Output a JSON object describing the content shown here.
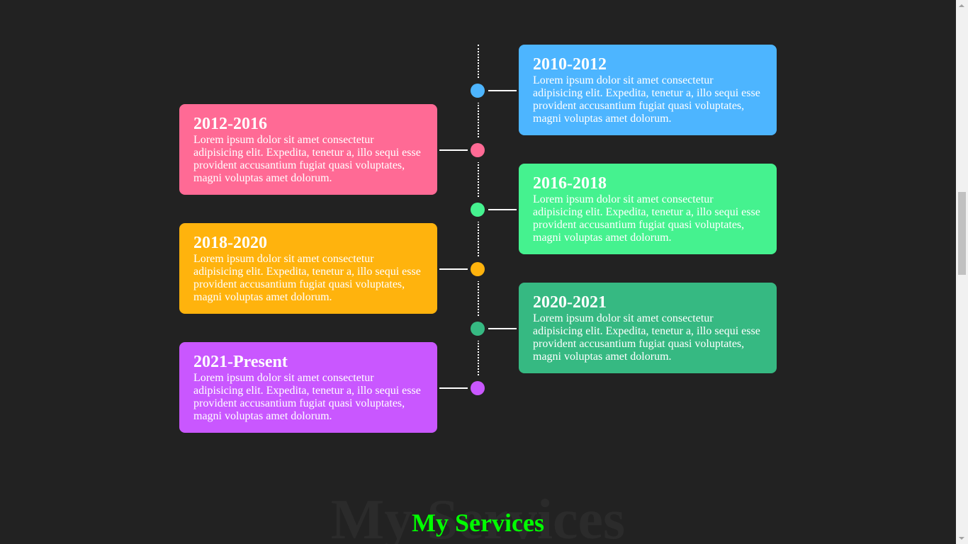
{
  "timeline": {
    "items": [
      {
        "year": "2010-2012",
        "desc": "Lorem ipsum dolor sit amet consectetur adipisicing elit. Expedita, tenetur a, illo sequi esse provident accusantium fugiat quasi voluptates, magni voluptas amet dolorum.",
        "color": "#4db5ff",
        "side": "right"
      },
      {
        "year": "2012-2016",
        "desc": "Lorem ipsum dolor sit amet consectetur adipisicing elit. Expedita, tenetur a, illo sequi esse provident accusantium fugiat quasi voluptates, magni voluptas amet dolorum.",
        "color": "#ff6a95",
        "side": "left"
      },
      {
        "year": "2016-2018",
        "desc": "Lorem ipsum dolor sit amet consectetur adipisicing elit. Expedita, tenetur a, illo sequi esse provident accusantium fugiat quasi voluptates, magni voluptas amet dolorum.",
        "color": "#45f28f",
        "side": "right"
      },
      {
        "year": "2018-2020",
        "desc": "Lorem ipsum dolor sit amet consectetur adipisicing elit. Expedita, tenetur a, illo sequi esse provident accusantium fugiat quasi voluptates, magni voluptas amet dolorum.",
        "color": "#ffb30d",
        "side": "left"
      },
      {
        "year": "2020-2021",
        "desc": "Lorem ipsum dolor sit amet consectetur adipisicing elit. Expedita, tenetur a, illo sequi esse provident accusantium fugiat quasi voluptates, magni voluptas amet dolorum.",
        "color": "#36b982",
        "side": "right"
      },
      {
        "year": "2021-Present",
        "desc": "Lorem ipsum dolor sit amet consectetur adipisicing elit. Expedita, tenetur a, illo sequi esse provident accusantium fugiat quasi voluptates, magni voluptas amet dolorum.",
        "color": "#c957ff",
        "side": "left"
      }
    ]
  },
  "services": {
    "background_text": "My Services",
    "title": "My Services",
    "title_color": "#00ff00"
  }
}
